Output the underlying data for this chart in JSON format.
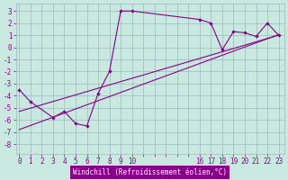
{
  "bg_color": "#c8e8e0",
  "line_color": "#880088",
  "grid_color": "#99bbbb",
  "xlabel": "Windchill (Refroidissement éolien,°C)",
  "xlabel_bg": "#880088",
  "xlabel_fg": "#ffffff",
  "x_tick_positions": [
    0,
    1,
    2,
    3,
    4,
    5,
    6,
    7,
    8,
    9,
    10,
    11,
    12,
    13,
    14,
    15,
    16,
    17,
    18,
    19,
    20,
    21,
    22,
    23
  ],
  "x_tick_labels": [
    "0",
    "1",
    "2",
    "3",
    "4",
    "5",
    "6",
    "7",
    "8",
    "9",
    "10",
    "",
    "",
    "",
    "",
    "",
    "16",
    "17",
    "18",
    "19",
    "20",
    "21",
    "22",
    "23"
  ],
  "y_ticks": [
    -8,
    -7,
    -6,
    -5,
    -4,
    -3,
    -2,
    -1,
    0,
    1,
    2,
    3
  ],
  "ylim": [
    -8.8,
    3.6
  ],
  "xlim": [
    -0.3,
    23.5
  ],
  "line1_x": [
    0,
    1,
    3,
    4,
    5,
    6,
    7,
    8,
    9,
    10,
    16,
    17,
    18,
    19,
    20,
    21,
    22,
    23
  ],
  "line1_y": [
    -3.5,
    -4.5,
    -5.8,
    -5.3,
    -6.3,
    -6.5,
    -3.8,
    -2.0,
    3.0,
    3.0,
    2.3,
    2.0,
    -0.2,
    1.3,
    1.2,
    0.9,
    2.0,
    1.0
  ],
  "line2_x": [
    0,
    23
  ],
  "line2_y": [
    -5.3,
    1.0
  ],
  "line3_x": [
    0,
    23
  ],
  "line3_y": [
    -6.8,
    1.05
  ],
  "tick_fontsize": 5.5,
  "label_fontsize": 5.5
}
